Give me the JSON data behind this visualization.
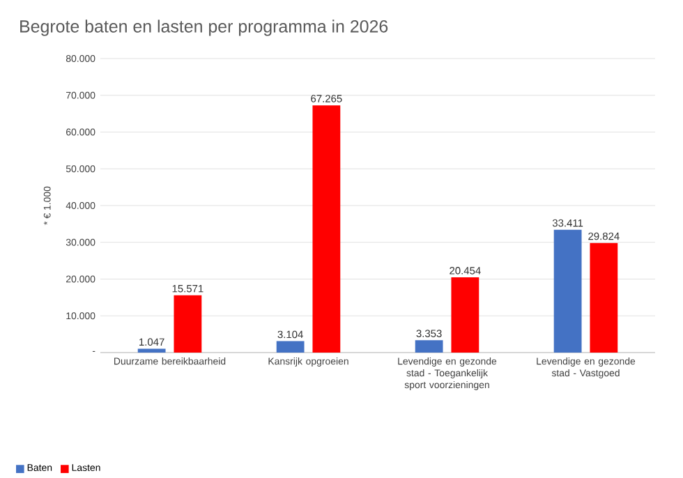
{
  "chart_data": {
    "type": "bar",
    "title": "Begrote baten en lasten per programma in 2026",
    "ylabel": "* € 1.000",
    "categories": [
      "Duurzame bereikbaarheid",
      "Kansrijk opgroeien",
      "Levendige en gezonde stad - Toegankelijk sport voorzieningen",
      "Levendige en gezonde stad - Vastgoed"
    ],
    "series": [
      {
        "name": "Baten",
        "color": "#4472c4",
        "values": [
          1047,
          3104,
          3353,
          33411
        ],
        "value_labels": [
          "1.047",
          "3.104",
          "3.353",
          "33.411"
        ]
      },
      {
        "name": "Lasten",
        "color": "#ff0000",
        "values": [
          15571,
          67265,
          20454,
          29824
        ],
        "value_labels": [
          "15.571",
          "67.265",
          "20.454",
          "29.824"
        ]
      }
    ],
    "ylim": [
      0,
      80000
    ],
    "yticks": [
      {
        "value": 0,
        "label": "-"
      },
      {
        "value": 10000,
        "label": "10.000"
      },
      {
        "value": 20000,
        "label": "20.000"
      },
      {
        "value": 30000,
        "label": "30.000"
      },
      {
        "value": 40000,
        "label": "40.000"
      },
      {
        "value": 50000,
        "label": "50.000"
      },
      {
        "value": 60000,
        "label": "60.000"
      },
      {
        "value": 70000,
        "label": "70.000"
      },
      {
        "value": 80000,
        "label": "80.000"
      }
    ],
    "grid": "y",
    "legend": "bottom left"
  }
}
